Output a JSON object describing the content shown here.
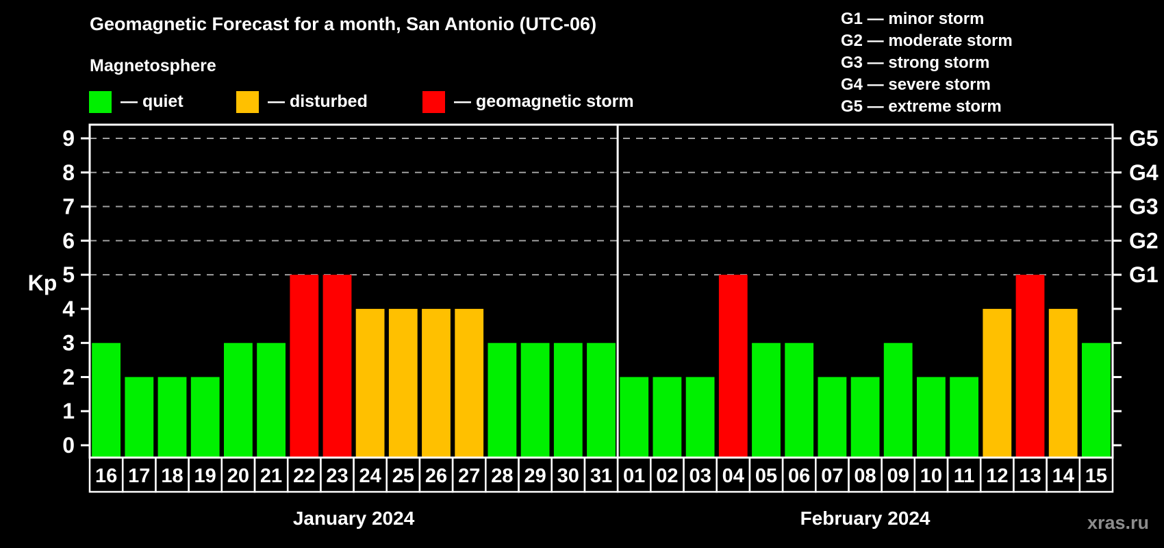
{
  "header": {
    "title": "Geomagnetic Forecast for a month, San Antonio (UTC-06)",
    "subtitle": "Magnetosphere",
    "legend": [
      {
        "level": "quiet",
        "label": "— quiet"
      },
      {
        "level": "disturbed",
        "label": "— disturbed"
      },
      {
        "level": "storm",
        "label": "— geomagnetic storm"
      }
    ],
    "g_legend": [
      "G1 — minor storm",
      "G2 — moderate storm",
      "G3 — strong storm",
      "G4 — severe storm",
      "G5 — extreme storm"
    ]
  },
  "chart_data": {
    "type": "bar",
    "title": "Geomagnetic Forecast for a month, San Antonio (UTC-06)",
    "ylabel": "Kp",
    "ylim": [
      -0.4,
      9.4
    ],
    "grid": "dashed horizontal at storm levels only",
    "y_ticks": [
      0,
      1,
      2,
      3,
      4,
      5,
      6,
      7,
      8,
      9
    ],
    "gridlines_at": [
      5,
      6,
      7,
      8,
      9
    ],
    "right_axis_labels": [
      {
        "value": 5,
        "label": "G1"
      },
      {
        "value": 6,
        "label": "G2"
      },
      {
        "value": 7,
        "label": "G3"
      },
      {
        "value": 8,
        "label": "G4"
      },
      {
        "value": 9,
        "label": "G5"
      }
    ],
    "colors": {
      "quiet": "#00f000",
      "disturbed": "#ffc000",
      "storm": "#ff0000",
      "gridline": "#a0a0a0",
      "axis": "#ffffff"
    },
    "months": [
      {
        "label": "January 2024",
        "days": [
          "16",
          "17",
          "18",
          "19",
          "20",
          "21",
          "22",
          "23",
          "24",
          "25",
          "26",
          "27",
          "28",
          "29",
          "30",
          "31"
        ],
        "values": [
          3,
          2,
          2,
          2,
          3,
          3,
          5,
          5,
          4,
          4,
          4,
          4,
          3,
          3,
          3,
          3
        ],
        "levels": [
          "quiet",
          "quiet",
          "quiet",
          "quiet",
          "quiet",
          "quiet",
          "storm",
          "storm",
          "disturbed",
          "disturbed",
          "disturbed",
          "disturbed",
          "quiet",
          "quiet",
          "quiet",
          "quiet"
        ]
      },
      {
        "label": "February 2024",
        "days": [
          "01",
          "02",
          "03",
          "04",
          "05",
          "06",
          "07",
          "08",
          "09",
          "10",
          "11",
          "12",
          "13",
          "14",
          "15"
        ],
        "values": [
          2,
          2,
          2,
          5,
          3,
          3,
          2,
          2,
          3,
          2,
          2,
          4,
          5,
          4,
          3
        ],
        "levels": [
          "quiet",
          "quiet",
          "quiet",
          "storm",
          "quiet",
          "quiet",
          "quiet",
          "quiet",
          "quiet",
          "quiet",
          "quiet",
          "disturbed",
          "storm",
          "disturbed",
          "quiet"
        ]
      }
    ]
  },
  "watermark": "xras.ru"
}
